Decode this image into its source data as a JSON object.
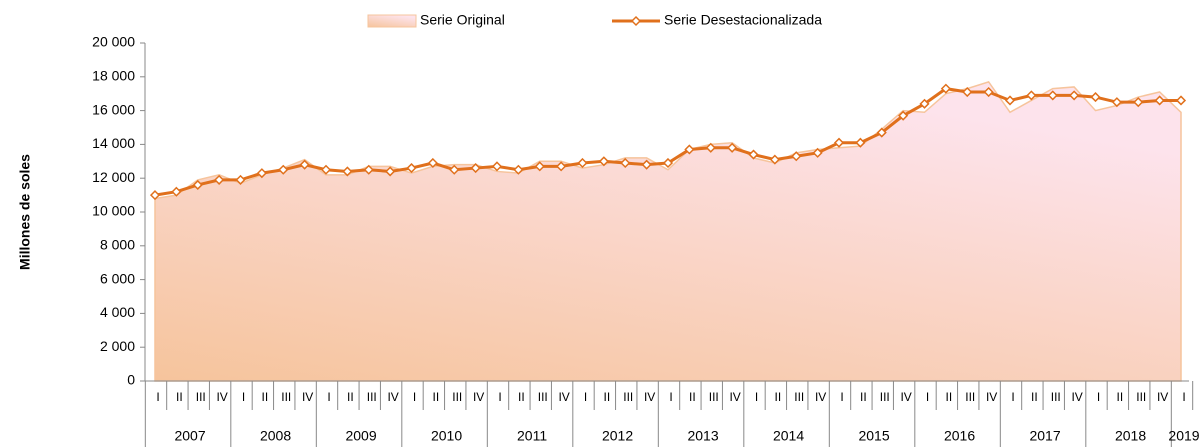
{
  "chart_data": {
    "type": "area-line",
    "y_label": "Millones de soles",
    "categories": [
      "I",
      "II",
      "III",
      "IV",
      "I",
      "II",
      "III",
      "IV",
      "I",
      "II",
      "III",
      "IV",
      "I",
      "II",
      "III",
      "IV",
      "I",
      "II",
      "III",
      "IV",
      "I",
      "II",
      "III",
      "IV",
      "I",
      "II",
      "III",
      "IV",
      "I",
      "II",
      "III",
      "IV",
      "I",
      "II",
      "III",
      "IV",
      "I",
      "II",
      "III",
      "IV",
      "I",
      "II",
      "III",
      "IV",
      "I",
      "II",
      "III",
      "IV",
      "I"
    ],
    "years": [
      "2007",
      "2008",
      "2009",
      "2010",
      "2011",
      "2012",
      "2013",
      "2014",
      "2015",
      "2016",
      "2017",
      "2018",
      "2019"
    ],
    "series": [
      {
        "name": "Serie Original",
        "kind": "area",
        "color": "#f6c49c",
        "values": [
          10800,
          11000,
          11900,
          12200,
          11700,
          12200,
          12600,
          13100,
          12200,
          12200,
          12700,
          12700,
          12300,
          12700,
          12800,
          12800,
          12400,
          12300,
          13000,
          13000,
          12600,
          12800,
          13200,
          13200,
          12500,
          13700,
          14000,
          14100,
          13200,
          12900,
          13500,
          13700,
          13800,
          13900,
          14900,
          16000,
          15900,
          17000,
          17300,
          17700,
          15900,
          16600,
          17300,
          17400,
          16000,
          16300,
          16800,
          17100,
          15900
        ]
      },
      {
        "name": "Serie Desestacionalizada",
        "kind": "line",
        "color": "#e0701c",
        "values": [
          11000,
          11200,
          11600,
          11900,
          11900,
          12300,
          12500,
          12800,
          12500,
          12400,
          12500,
          12400,
          12600,
          12900,
          12500,
          12600,
          12700,
          12500,
          12700,
          12700,
          12900,
          13000,
          12900,
          12800,
          12900,
          13700,
          13800,
          13800,
          13400,
          13100,
          13300,
          13500,
          14100,
          14100,
          14700,
          15700,
          16400,
          17300,
          17100,
          17100,
          16600,
          16900,
          16900,
          16900,
          16800,
          16500,
          16500,
          16600,
          16600
        ]
      }
    ],
    "ylim": [
      0,
      20000
    ],
    "yticks": [
      {
        "value": 0,
        "label": "0"
      },
      {
        "value": 2000,
        "label": "2 000"
      },
      {
        "value": 4000,
        "label": "4 000"
      },
      {
        "value": 6000,
        "label": "6 000"
      },
      {
        "value": 8000,
        "label": "8 000"
      },
      {
        "value": 10000,
        "label": "10 000"
      },
      {
        "value": 12000,
        "label": "12 000"
      },
      {
        "value": 14000,
        "label": "14 000"
      },
      {
        "value": 16000,
        "label": "16 000"
      },
      {
        "value": 18000,
        "label": "18 000"
      },
      {
        "value": 20000,
        "label": "20 000"
      }
    ],
    "legend": "top"
  }
}
